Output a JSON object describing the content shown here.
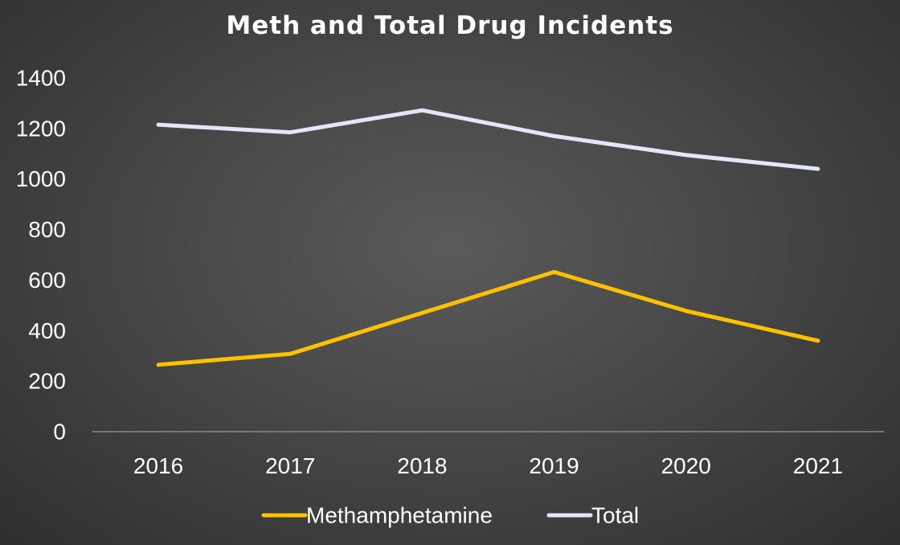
{
  "chart_data": {
    "type": "line",
    "title": "Meth and Total Drug Incidents",
    "categories": [
      "2016",
      "2017",
      "2018",
      "2019",
      "2020",
      "2021"
    ],
    "series": [
      {
        "name": "Methamphetamine",
        "color": "#ffc000",
        "values": [
          265,
          308,
          470,
          632,
          478,
          360
        ]
      },
      {
        "name": "Total",
        "color": "#e4e5f6",
        "values": [
          1215,
          1185,
          1272,
          1170,
          1095,
          1040
        ]
      }
    ],
    "ylim": [
      0,
      1400
    ],
    "yticks": [
      "0",
      "200",
      "400",
      "600",
      "800",
      "1000",
      "1200",
      "1400"
    ],
    "legend": "bottom",
    "grid": false
  }
}
